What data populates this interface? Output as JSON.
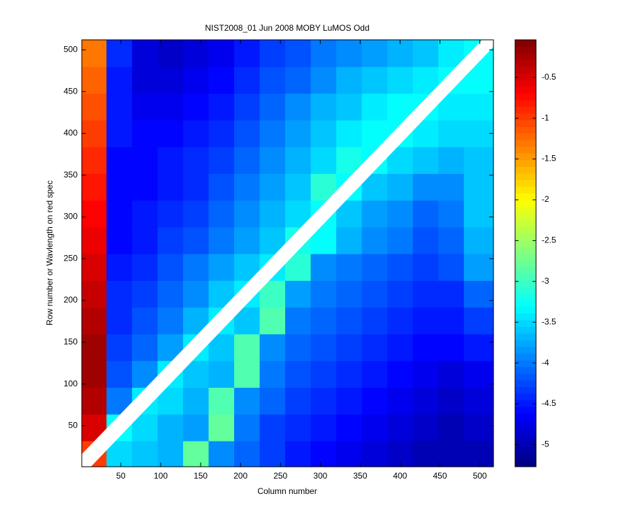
{
  "chart_data": {
    "type": "heatmap",
    "title": "NIST2008_01 Jun 2008 MOBY LuMOS Odd",
    "x_label": "Column number",
    "y_label": "Row number or Wavlength on red spec",
    "colormap": "jet",
    "xlim": [
      1,
      517
    ],
    "ylim": [
      1,
      512
    ],
    "xticks": [
      50,
      100,
      150,
      200,
      250,
      300,
      350,
      400,
      450,
      500
    ],
    "yticks": [
      50,
      100,
      150,
      200,
      250,
      300,
      350,
      400,
      450,
      500
    ],
    "clim": [
      -5.27,
      -0.04
    ],
    "cticks": [
      -0.5,
      -1,
      -1.5,
      -2,
      -2.5,
      -3,
      -3.5,
      -4,
      -4.5,
      -5
    ],
    "x": [
      16,
      48,
      80,
      112,
      144,
      176,
      208,
      240,
      272,
      304,
      336,
      368,
      400,
      432,
      464,
      496
    ],
    "y": [
      16,
      48,
      80,
      112,
      144,
      176,
      208,
      240,
      272,
      304,
      336,
      368,
      400,
      432,
      464,
      496
    ],
    "z": [
      [
        -1.0,
        -3.5,
        -3.6,
        -3.7,
        -2.8,
        -3.9,
        -4.1,
        -4.3,
        -4.5,
        -4.6,
        -4.7,
        -4.8,
        -4.9,
        -5.0,
        -5.0,
        -5.0
      ],
      [
        -0.5,
        -3.3,
        -3.5,
        -3.7,
        -3.8,
        -2.8,
        -4.0,
        -4.3,
        -4.4,
        -4.5,
        -4.6,
        -4.7,
        -4.8,
        -4.9,
        -5.0,
        -4.9
      ],
      [
        -0.3,
        -4.0,
        -3.4,
        -3.5,
        -3.7,
        -2.9,
        -3.9,
        -4.1,
        -4.3,
        -4.4,
        -4.5,
        -4.6,
        -4.7,
        -4.8,
        -4.9,
        -4.8
      ],
      [
        -0.2,
        -4.2,
        -3.9,
        -3.4,
        -3.6,
        -3.7,
        -2.9,
        -4.0,
        -4.2,
        -4.3,
        -4.4,
        -4.5,
        -4.6,
        -4.7,
        -4.8,
        -4.7
      ],
      [
        -0.2,
        -4.3,
        -4.1,
        -3.8,
        -3.4,
        -3.6,
        -2.9,
        -3.9,
        -4.1,
        -4.2,
        -4.3,
        -4.4,
        -4.5,
        -4.6,
        -4.6,
        -4.5
      ],
      [
        -0.3,
        -4.4,
        -4.2,
        -4.0,
        -3.7,
        -3.4,
        -3.6,
        -2.9,
        -4.0,
        -4.1,
        -4.2,
        -4.3,
        -4.4,
        -4.5,
        -4.5,
        -4.3
      ],
      [
        -0.4,
        -4.4,
        -4.3,
        -4.1,
        -3.9,
        -3.6,
        -3.4,
        -3.0,
        -3.8,
        -4.0,
        -4.1,
        -4.2,
        -4.3,
        -4.4,
        -4.4,
        -4.1
      ],
      [
        -0.5,
        -4.5,
        -4.4,
        -4.2,
        -4.0,
        -3.8,
        -3.6,
        -3.4,
        -3.1,
        -3.9,
        -4.0,
        -4.1,
        -4.2,
        -4.3,
        -4.2,
        -3.8
      ],
      [
        -0.6,
        -4.6,
        -4.5,
        -4.3,
        -4.2,
        -4.0,
        -3.8,
        -3.6,
        -3.2,
        -3.3,
        -3.7,
        -3.9,
        -4.0,
        -4.2,
        -4.1,
        -3.7
      ],
      [
        -0.7,
        -4.6,
        -4.5,
        -4.4,
        -4.3,
        -4.1,
        -3.9,
        -3.7,
        -3.5,
        -3.3,
        -3.6,
        -3.8,
        -3.9,
        -4.1,
        -4.0,
        -3.6
      ],
      [
        -0.8,
        -4.6,
        -4.6,
        -4.5,
        -4.4,
        -4.2,
        -4.0,
        -3.8,
        -3.6,
        -3.1,
        -3.3,
        -3.6,
        -3.7,
        -3.9,
        -3.9,
        -3.6
      ],
      [
        -0.9,
        -4.6,
        -4.6,
        -4.5,
        -4.4,
        -4.3,
        -4.1,
        -3.9,
        -3.7,
        -3.5,
        -3.2,
        -3.3,
        -3.5,
        -3.6,
        -3.7,
        -3.6
      ],
      [
        -1.0,
        -4.5,
        -4.6,
        -4.6,
        -4.5,
        -4.4,
        -4.2,
        -4.0,
        -3.8,
        -3.6,
        -3.4,
        -3.3,
        -3.3,
        -3.4,
        -3.5,
        -3.5
      ],
      [
        -1.1,
        -4.5,
        -4.7,
        -4.7,
        -4.6,
        -4.5,
        -4.3,
        -4.1,
        -3.9,
        -3.7,
        -3.6,
        -3.4,
        -3.3,
        -3.3,
        -3.4,
        -3.4
      ],
      [
        -1.2,
        -4.5,
        -4.8,
        -4.8,
        -4.7,
        -4.6,
        -4.4,
        -4.2,
        -4.1,
        -3.9,
        -3.7,
        -3.6,
        -3.5,
        -3.4,
        -3.3,
        -3.3
      ],
      [
        -1.3,
        -4.4,
        -4.8,
        -4.9,
        -4.8,
        -4.7,
        -4.5,
        -4.3,
        -4.2,
        -4.0,
        -3.9,
        -3.8,
        -3.7,
        -3.6,
        -3.4,
        -3.3
      ]
    ]
  }
}
